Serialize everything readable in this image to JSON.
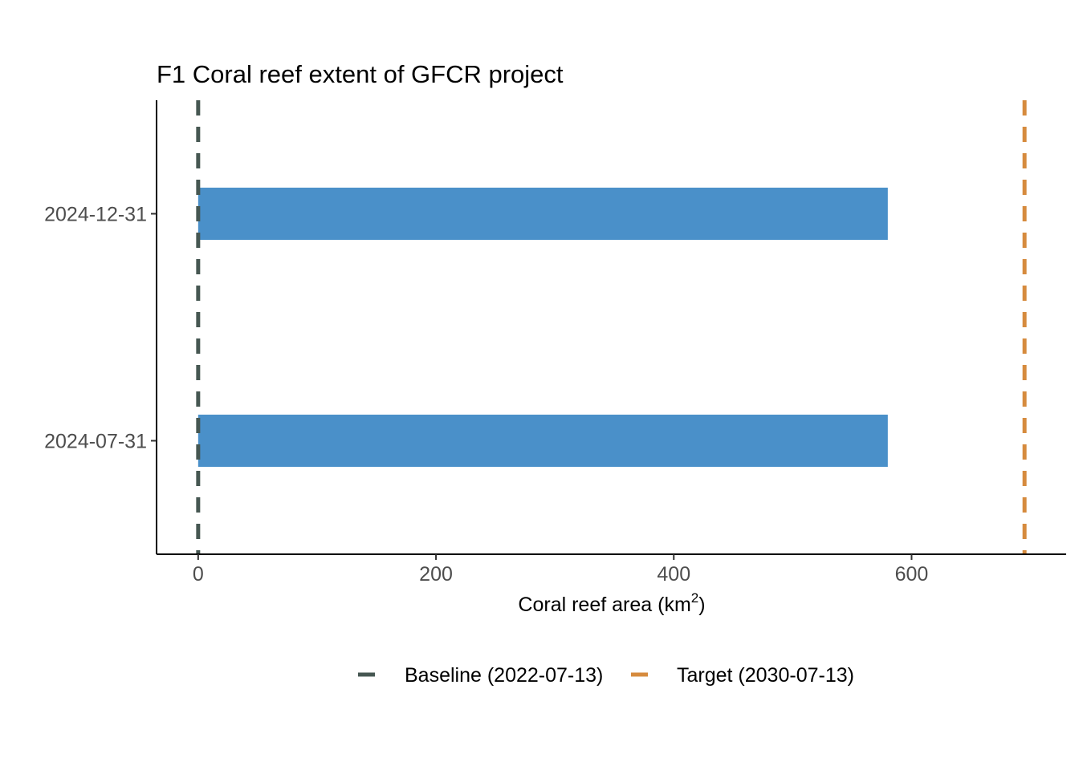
{
  "chart_data": {
    "type": "bar",
    "orientation": "horizontal",
    "title": "F1 Coral reef extent of GFCR project",
    "xlabel": "Coral reef area (km",
    "xlabel_superscript": "2",
    "xlabel_suffix": ")",
    "ylabel": "",
    "categories": [
      "2024-07-31",
      "2024-12-31"
    ],
    "values": [
      580,
      580
    ],
    "xlim": [
      -35,
      730
    ],
    "x_ticks": [
      0,
      200,
      400,
      600
    ],
    "x_tick_labels": [
      "0",
      "200",
      "400",
      "600"
    ],
    "bar_color": "#4a90c9",
    "grid": false,
    "reference_lines": [
      {
        "label": "Baseline (2022-07-13)",
        "value": 0,
        "color": "#465752",
        "style": "dashed"
      },
      {
        "label": "Target (2030-07-13)",
        "value": 695,
        "color": "#d68b3e",
        "style": "dashed"
      }
    ],
    "legend_position": "bottom"
  }
}
